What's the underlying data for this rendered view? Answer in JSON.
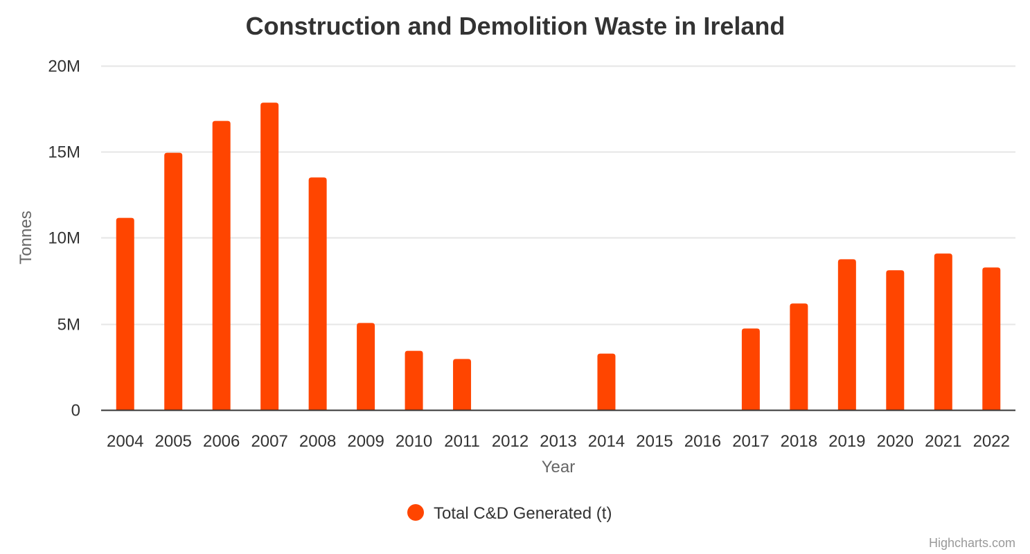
{
  "chart_data": {
    "type": "bar",
    "title": "Construction and Demolition Waste in Ireland",
    "xlabel": "Year",
    "ylabel": "Tonnes",
    "categories": [
      "2004",
      "2005",
      "2006",
      "2007",
      "2008",
      "2009",
      "2010",
      "2011",
      "2012",
      "2013",
      "2014",
      "2015",
      "2016",
      "2017",
      "2018",
      "2019",
      "2020",
      "2021",
      "2022"
    ],
    "series": [
      {
        "name": "Total C&D Generated (t)",
        "color": "#ff4500",
        "values": [
          11150000,
          14930000,
          16780000,
          17840000,
          13500000,
          5050000,
          3430000,
          2960000,
          null,
          null,
          3270000,
          null,
          null,
          4730000,
          6180000,
          8750000,
          8110000,
          9080000,
          8270000
        ]
      }
    ],
    "ylim": [
      0,
      20000000
    ],
    "yticks": [
      0,
      5000000,
      10000000,
      15000000,
      20000000
    ],
    "ytick_labels": [
      "0",
      "5M",
      "10M",
      "15M",
      "20M"
    ],
    "grid": true,
    "legend_position": "bottom-center",
    "credits": "Highcharts.com"
  }
}
